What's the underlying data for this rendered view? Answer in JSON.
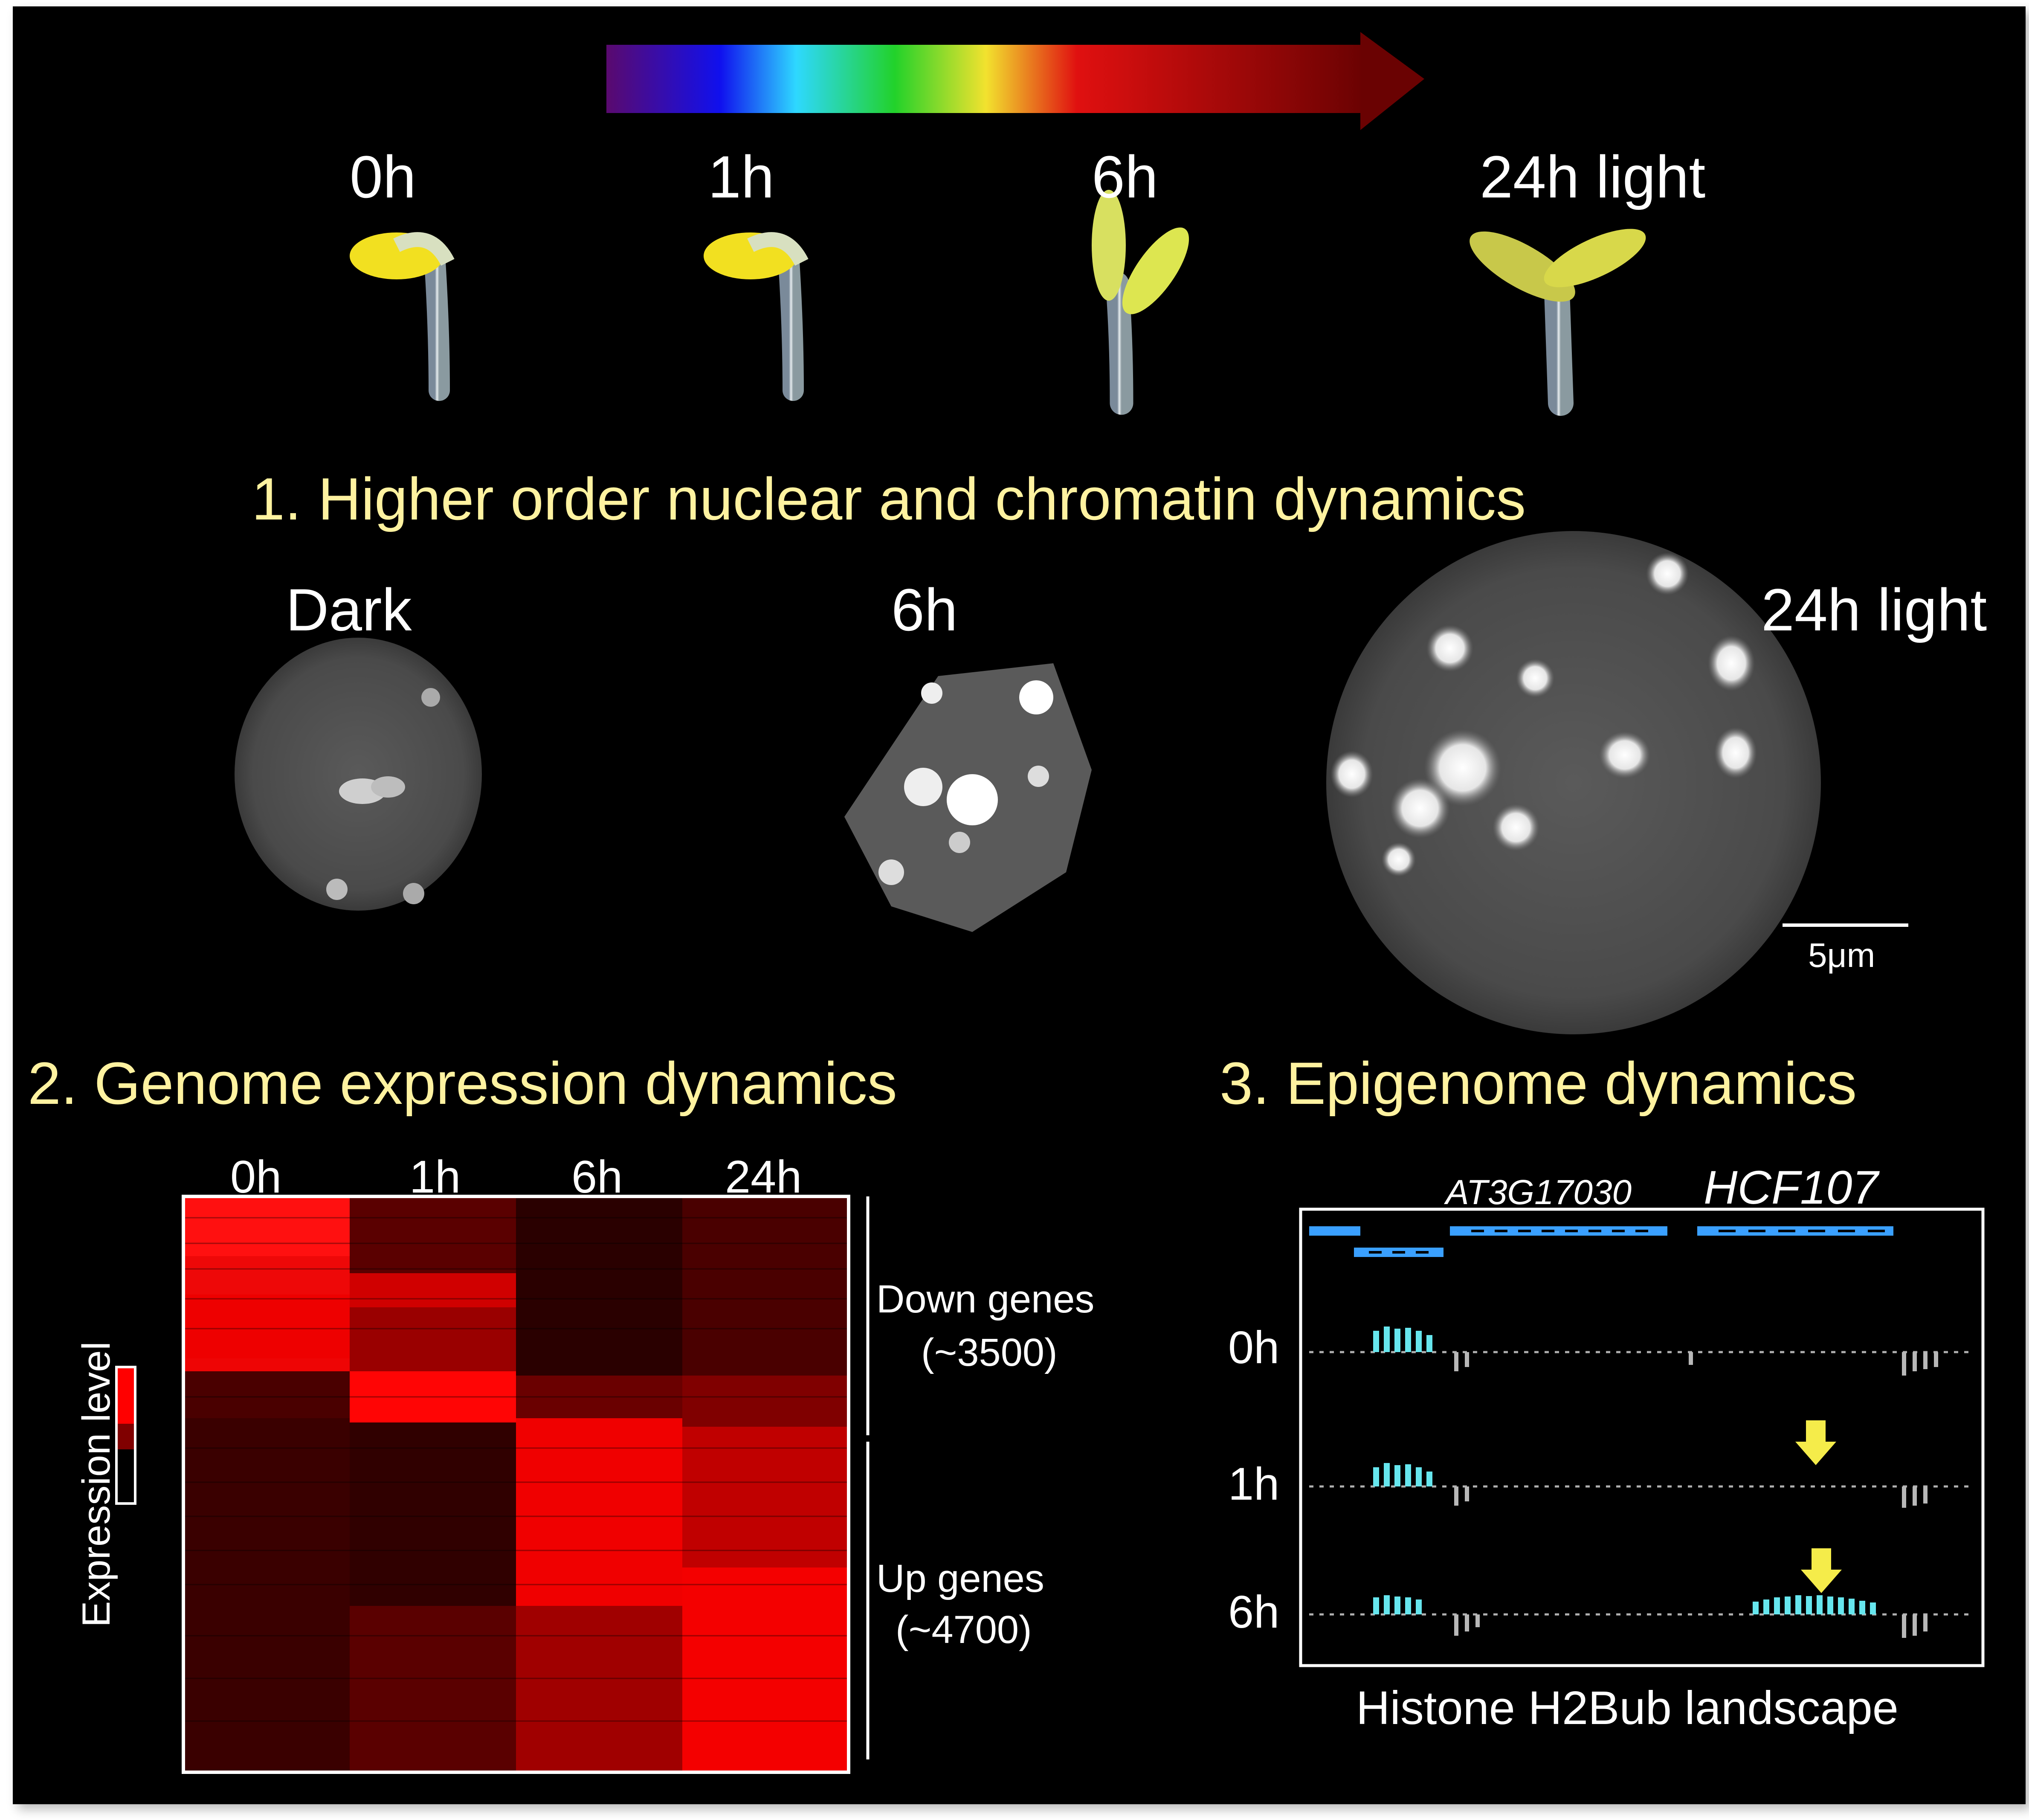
{
  "timeline": {
    "labels": [
      "0h",
      "1h",
      "6h",
      "24h light"
    ],
    "gradient_colors": [
      "#5a0a6e",
      "#1010ee",
      "#2ed8ff",
      "#22d22a",
      "#f2e22e",
      "#e01010",
      "#6a0202"
    ]
  },
  "section1": {
    "title": "1. Higher order nuclear and chromatin dynamics",
    "labels": [
      "Dark",
      "6h",
      "24h light"
    ],
    "scale_bar": "5μm"
  },
  "section2": {
    "title": "2. Genome expression dynamics",
    "columns": [
      "0h",
      "1h",
      "6h",
      "24h"
    ],
    "legend_label": "Expression level",
    "down_label_1": "Down genes",
    "down_label_2": "(~3500)",
    "up_label_1": "Up genes",
    "up_label_2": "(~4700)"
  },
  "section3": {
    "title": "3. Epigenome dynamics",
    "gene1": "AT3G17030",
    "gene2": "HCF107",
    "rows": [
      "0h",
      "1h",
      "6h"
    ],
    "caption": "Histone H2Bub landscape"
  },
  "colors": {
    "title_yellow": "#fff2a0",
    "heat_red": "#ff0000",
    "track_cyan": "#66e6ee",
    "gene_blue": "#3aa0ff",
    "arrow_yellow": "#f5ec4a"
  }
}
